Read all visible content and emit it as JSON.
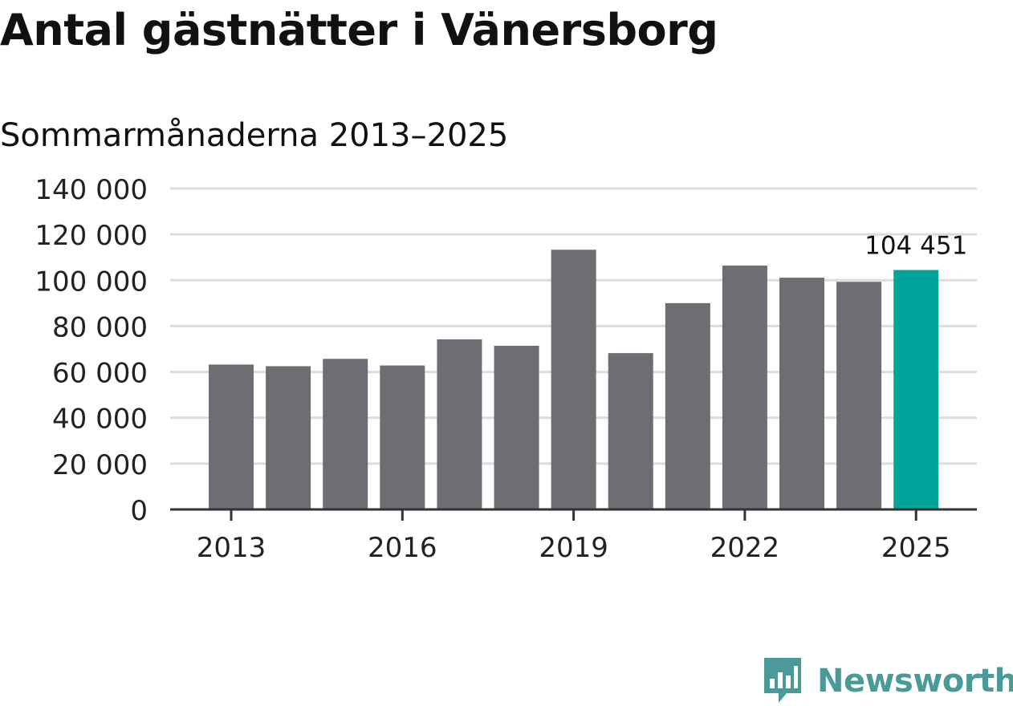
{
  "header": {
    "title": "Antal gästnätter i Vänersborg",
    "subtitle": "Sommarmånaderna 2013–2025"
  },
  "brand": {
    "name": "Newsworthy",
    "color": "#4a9a9a",
    "icon": "bar-chart-speech-bubble-icon"
  },
  "chart_data": {
    "type": "bar",
    "categories": [
      "2013",
      "2014",
      "2015",
      "2016",
      "2017",
      "2018",
      "2019",
      "2020",
      "2021",
      "2022",
      "2023",
      "2024",
      "2025"
    ],
    "values": [
      63200,
      62500,
      65700,
      62800,
      74200,
      71400,
      113300,
      68200,
      90000,
      106400,
      101100,
      99300,
      104451
    ],
    "x_tick_labels": [
      "2013",
      "2016",
      "2019",
      "2022",
      "2025"
    ],
    "y_tick_labels": [
      "0",
      "20 000",
      "40 000",
      "60 000",
      "80 000",
      "100 000",
      "120 000",
      "140 000"
    ],
    "ylim": [
      0,
      140000
    ],
    "grid": true,
    "highlight": {
      "category": "2025",
      "label": "104 451"
    },
    "colors": {
      "bar": "#6e6d73",
      "highlight": "#00a49a",
      "grid": "#dcdcdc",
      "axis": "#333333",
      "tick_text": "#222222"
    }
  }
}
